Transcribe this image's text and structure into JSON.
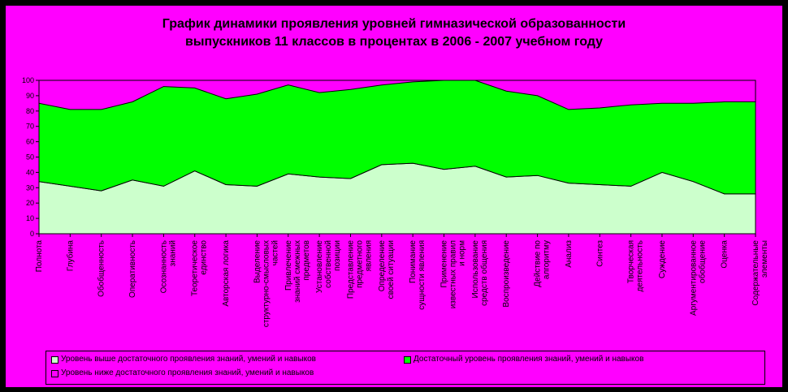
{
  "chart_data": {
    "type": "area",
    "stacked": true,
    "title_line1": "График динамики проявления уровней гимназической образованности",
    "title_line2": "выпускников 11 классов в процентах в 2006 - 2007 учебном году",
    "ylim": [
      0,
      100
    ],
    "yticks": [
      "0",
      "10",
      "20",
      "30",
      "40",
      "50",
      "60",
      "70",
      "80",
      "90",
      "100"
    ],
    "grid": false,
    "legend_position": "bottom",
    "categories": [
      "Полнота",
      "Глубина",
      "Обобщенность",
      "Оперативность",
      "Осознанность знаний",
      "Теоретическое единство",
      "Авторская логика",
      "Выделение структурно-смысловых частей",
      "Привлечение знаний",
      "Установление собственного...",
      "Представление предметного...",
      "Определение ситуации...",
      "Понимание сущности явления",
      "Применение известных правил и норм",
      "Использование средств общения",
      "Воспроизведение",
      "Действие по алгоритму",
      "Анализ",
      "Синтез",
      "Творческая деятельность",
      "Суждение",
      "Аргументированное обобщение",
      "Оценка",
      "Содержательные элементы"
    ],
    "x_tick_labels": [
      "Полнота",
      "Глубина",
      "Обобщенность",
      "Оперативность",
      "Осознанность знаний",
      "Теоретическое единство",
      "Авторская логика",
      "Выделение структурно-смысловых частей",
      "Привлечение знаний смежных предметов",
      "Установление собственной позиции",
      "Представление предметного явления",
      "Определение своей ситуации",
      "Понимание сущности явления",
      "Применение известных правил и норм",
      "Использование средств общения",
      "Воспроизведение",
      "Действие по алгоритму",
      "Анализ",
      "Синтез",
      "Творческая деятельность",
      "Суждение",
      "Аргументированное обобщение",
      "Оценка",
      "Содержательные элементы"
    ],
    "series": [
      {
        "name": "Уровень выше достаточного проявления знаний, умений и навыков",
        "color": "#ccffcc",
        "values": [
          34,
          31,
          28,
          35,
          31,
          41,
          32,
          31,
          39,
          37,
          36,
          45,
          46,
          42,
          44,
          37,
          38,
          33,
          32,
          31,
          40,
          34,
          26,
          26
        ]
      },
      {
        "name": "Достаточный уровень проявления знаний, умений и навыков",
        "color": "#00ff00",
        "values": [
          51,
          50,
          53,
          51,
          65,
          54,
          56,
          60,
          58,
          55,
          58,
          52,
          53,
          58,
          56,
          56,
          52,
          48,
          50,
          53,
          45,
          51,
          60,
          60
        ]
      },
      {
        "name": "Уровень ниже достаточного проявления знаний, умений и навыков",
        "color": "#ff00ff",
        "values": [
          15,
          19,
          19,
          14,
          4,
          5,
          12,
          9,
          3,
          8,
          6,
          3,
          1,
          0,
          0,
          7,
          10,
          19,
          18,
          16,
          15,
          15,
          14,
          14
        ]
      }
    ]
  }
}
